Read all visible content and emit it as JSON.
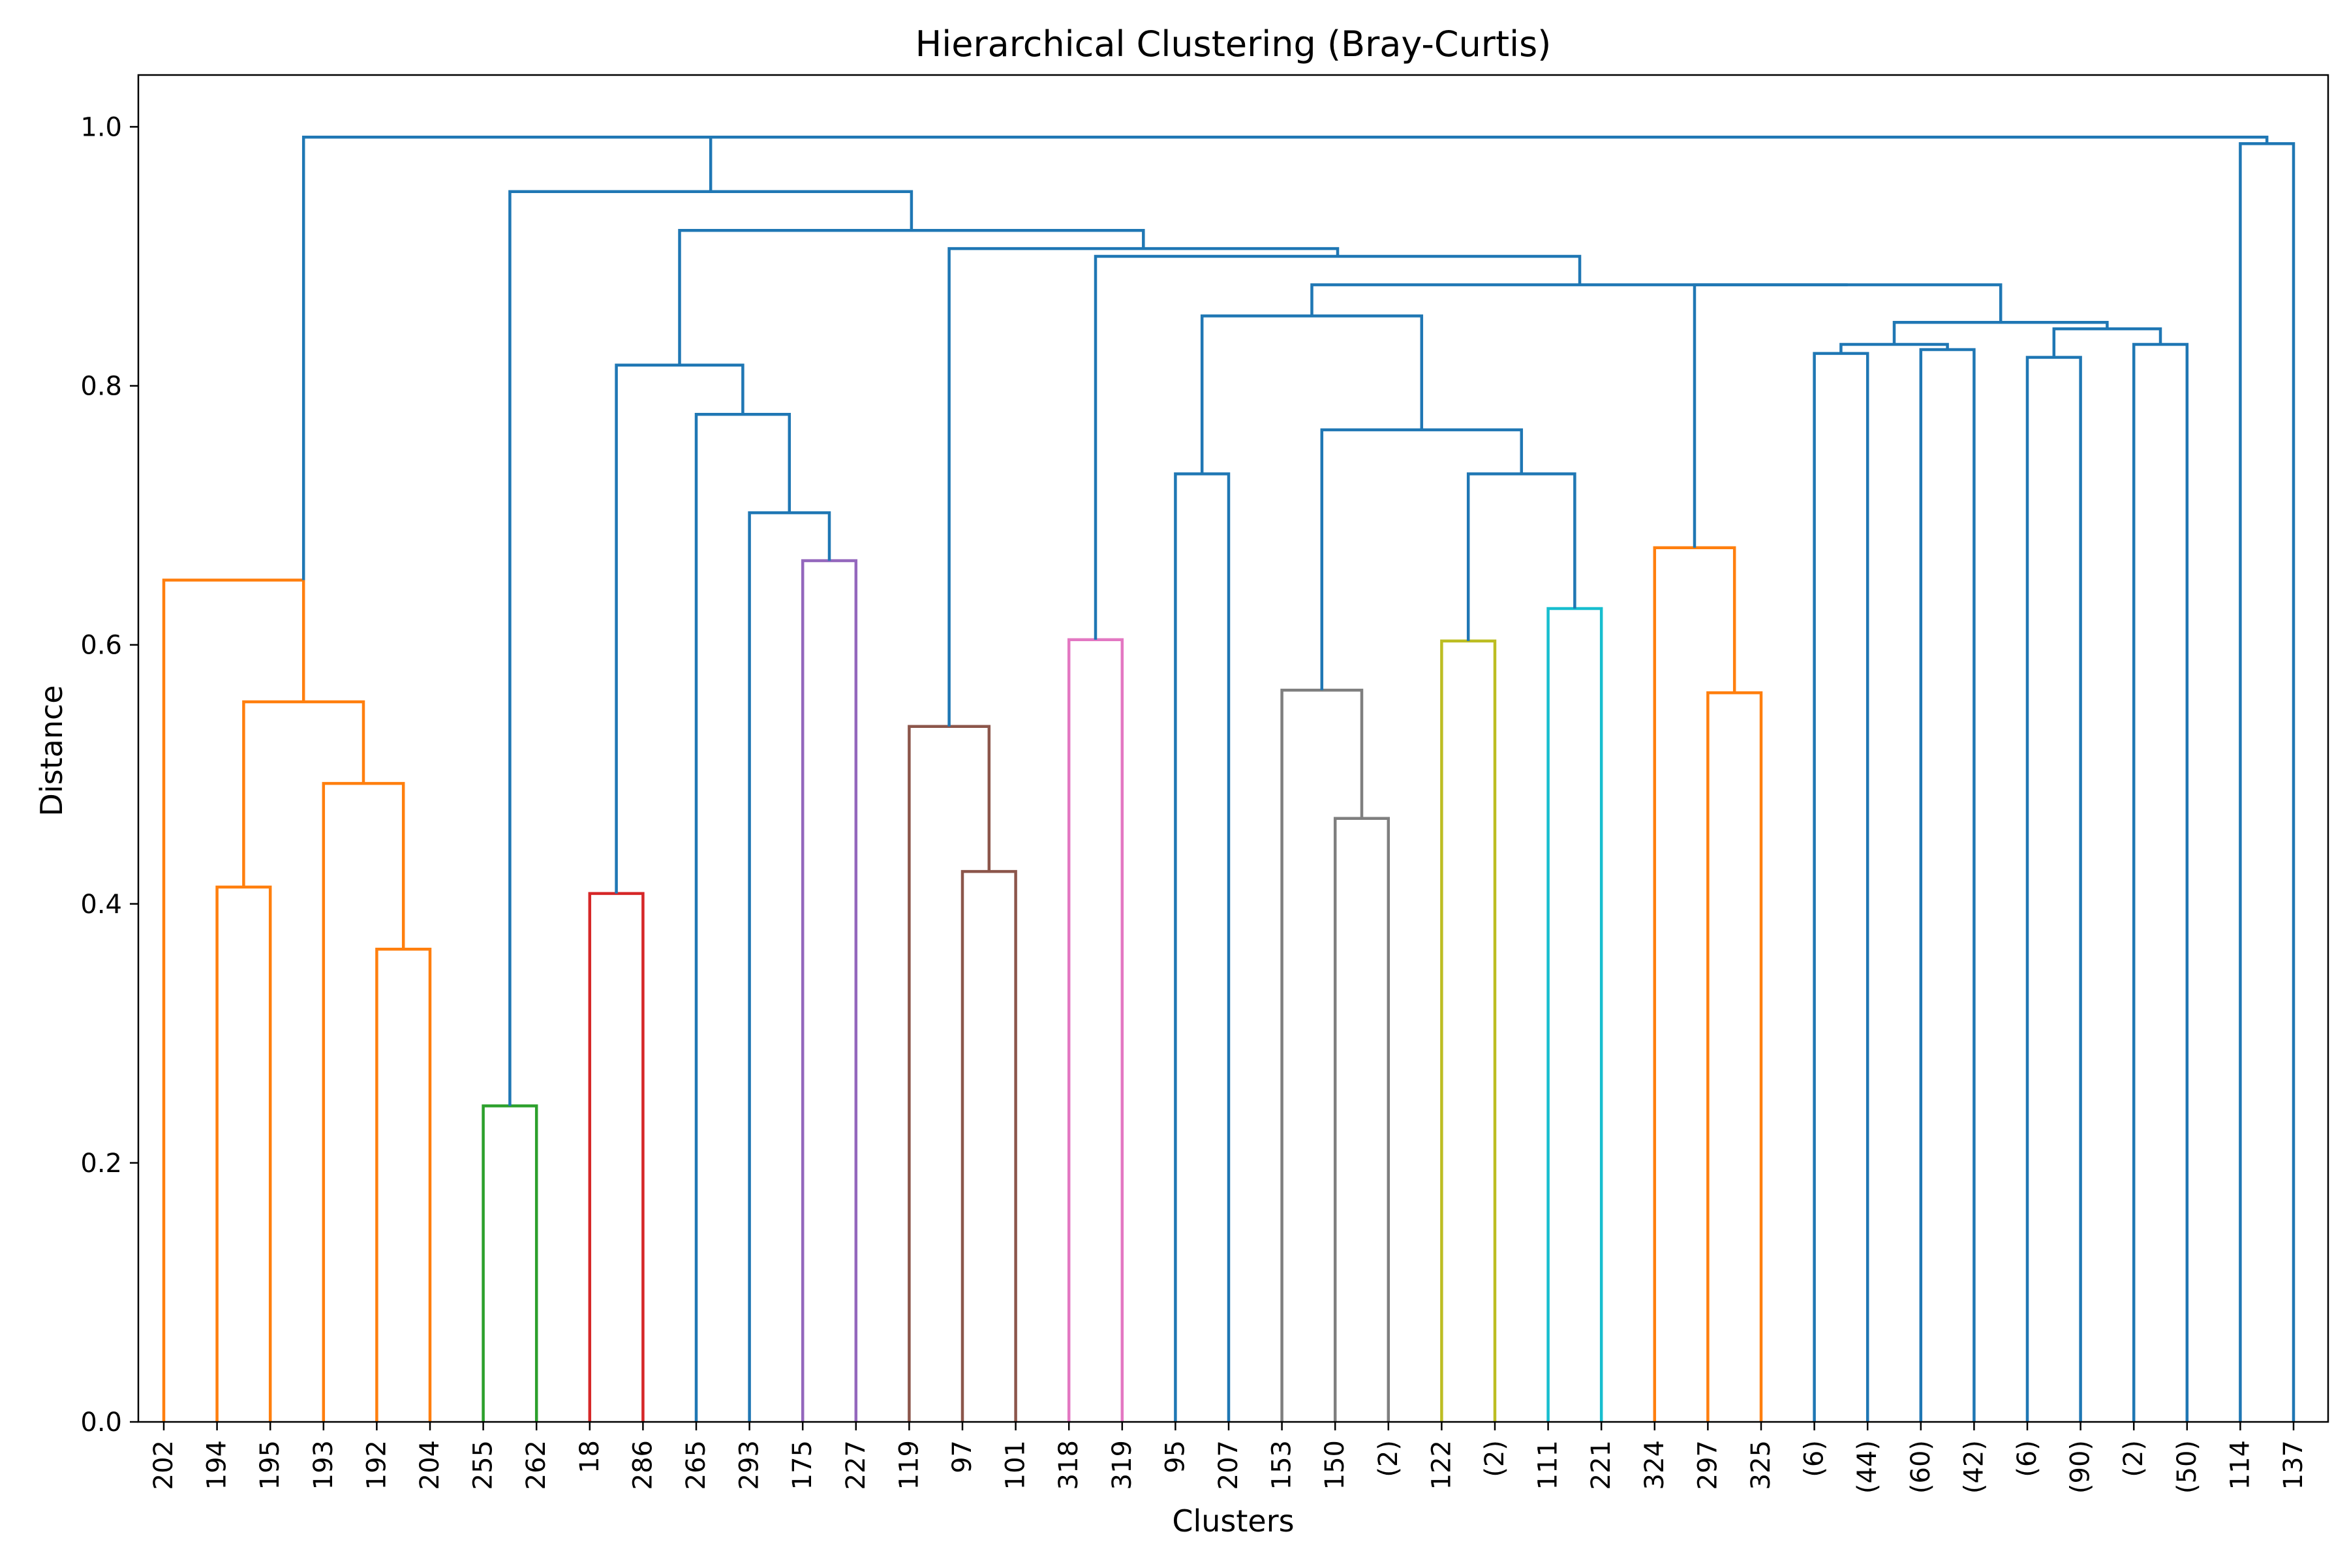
{
  "chart_data": {
    "type": "dendrogram",
    "title": "Hierarchical Clustering (Bray-Curtis)",
    "xlabel": "Clusters",
    "ylabel": "Distance",
    "ylim": [
      0,
      1.04
    ],
    "yticks": [
      "0.0",
      "0.2",
      "0.4",
      "0.6",
      "0.8",
      "1.0"
    ],
    "leaves": [
      "202",
      "194",
      "195",
      "193",
      "192",
      "204",
      "255",
      "262",
      "18",
      "286",
      "265",
      "293",
      "175",
      "227",
      "119",
      "97",
      "101",
      "318",
      "319",
      "95",
      "207",
      "153",
      "150",
      "(2)",
      "122",
      "(2)",
      "111",
      "221",
      "324",
      "297",
      "325",
      "(6)",
      "(44)",
      "(60)",
      "(42)",
      "(6)",
      "(90)",
      "(2)",
      "(50)",
      "114",
      "137"
    ],
    "colors": {
      "C0": "#1f77b4",
      "C1": "#ff7f0e",
      "C2": "#2ca02c",
      "C3": "#d62728",
      "C4": "#9467bd",
      "C5": "#8c564b",
      "C6": "#e377c2",
      "C7": "#7f7f7f",
      "C8": "#bcbd22",
      "C9": "#17becf"
    },
    "links": [
      {
        "a": 1,
        "b": 2,
        "h": 0.413,
        "ha": 0,
        "hb": 0,
        "c": "C1"
      },
      {
        "a": 4,
        "b": 5,
        "h": 0.365,
        "ha": 0,
        "hb": 0,
        "c": "C1"
      },
      {
        "a": 3,
        "b": 4.5,
        "h": 0.493,
        "ha": 0,
        "hb": 0.365,
        "c": "C1"
      },
      {
        "a": 1.5,
        "b": 3.75,
        "h": 0.556,
        "ha": 0.413,
        "hb": 0.493,
        "c": "C1"
      },
      {
        "a": 0,
        "b": 2.625,
        "h": 0.65,
        "ha": 0,
        "hb": 0.556,
        "c": "C1"
      },
      {
        "a": 6,
        "b": 7,
        "h": 0.244,
        "ha": 0,
        "hb": 0,
        "c": "C2"
      },
      {
        "a": 8,
        "b": 9,
        "h": 0.408,
        "ha": 0,
        "hb": 0,
        "c": "C3"
      },
      {
        "a": 12,
        "b": 13,
        "h": 0.665,
        "ha": 0,
        "hb": 0,
        "c": "C4"
      },
      {
        "a": 11,
        "b": 12.5,
        "h": 0.702,
        "ha": 0,
        "hb": 0.665,
        "c": "C0"
      },
      {
        "a": 10,
        "b": 11.75,
        "h": 0.778,
        "ha": 0,
        "hb": 0.702,
        "c": "C0"
      },
      {
        "a": 8.5,
        "b": 10.875,
        "h": 0.816,
        "ha": 0.408,
        "hb": 0.778,
        "c": "C0"
      },
      {
        "a": 15,
        "b": 16,
        "h": 0.425,
        "ha": 0,
        "hb": 0,
        "c": "C5"
      },
      {
        "a": 14,
        "b": 15.5,
        "h": 0.537,
        "ha": 0,
        "hb": 0.425,
        "c": "C5"
      },
      {
        "a": 17,
        "b": 18,
        "h": 0.604,
        "ha": 0,
        "hb": 0,
        "c": "C6"
      },
      {
        "a": 19,
        "b": 20,
        "h": 0.732,
        "ha": 0,
        "hb": 0,
        "c": "C0"
      },
      {
        "a": 22,
        "b": 23,
        "h": 0.466,
        "ha": 0,
        "hb": 0,
        "c": "C7"
      },
      {
        "a": 21,
        "b": 22.5,
        "h": 0.565,
        "ha": 0,
        "hb": 0.466,
        "c": "C7"
      },
      {
        "a": 24,
        "b": 25,
        "h": 0.603,
        "ha": 0,
        "hb": 0,
        "c": "C8"
      },
      {
        "a": 26,
        "b": 27,
        "h": 0.628,
        "ha": 0,
        "hb": 0,
        "c": "C9"
      },
      {
        "a": 24.5,
        "b": 26.5,
        "h": 0.732,
        "ha": 0.603,
        "hb": 0.628,
        "c": "C0"
      },
      {
        "a": 21.75,
        "b": 25.5,
        "h": 0.766,
        "ha": 0.565,
        "hb": 0.732,
        "c": "C0"
      },
      {
        "a": 19.5,
        "b": 23.625,
        "h": 0.854,
        "ha": 0.732,
        "hb": 0.766,
        "c": "C0"
      },
      {
        "a": 29,
        "b": 30,
        "h": 0.563,
        "ha": 0,
        "hb": 0,
        "c": "C1"
      },
      {
        "a": 28,
        "b": 29.5,
        "h": 0.675,
        "ha": 0,
        "hb": 0.563,
        "c": "C1"
      },
      {
        "a": 31,
        "b": 32,
        "h": 0.825,
        "ha": 0,
        "hb": 0,
        "c": "C0"
      },
      {
        "a": 33,
        "b": 34,
        "h": 0.828,
        "ha": 0,
        "hb": 0,
        "c": "C0"
      },
      {
        "a": 31.5,
        "b": 33.5,
        "h": 0.832,
        "ha": 0.825,
        "hb": 0.828,
        "c": "C0"
      },
      {
        "a": 35,
        "b": 36,
        "h": 0.822,
        "ha": 0,
        "hb": 0,
        "c": "C0"
      },
      {
        "a": 37,
        "b": 38,
        "h": 0.832,
        "ha": 0,
        "hb": 0,
        "c": "C0"
      },
      {
        "a": 35.5,
        "b": 37.5,
        "h": 0.844,
        "ha": 0.822,
        "hb": 0.832,
        "c": "C0"
      },
      {
        "a": 32.5,
        "b": 36.5,
        "h": 0.849,
        "ha": 0.832,
        "hb": 0.844,
        "c": "C0"
      },
      {
        "a": 28.75,
        "b": 34.5,
        "h": 0.878,
        "ha": 0.675,
        "hb": 0.849,
        "c": "C0"
      },
      {
        "a": 21.5625,
        "b": 31.625,
        "h": 0.878,
        "ha": 0.854,
        "hb": 0.878,
        "c": "C0"
      },
      {
        "a": 17.5,
        "b": 26.59375,
        "h": 0.9,
        "ha": 0.604,
        "hb": 0.878,
        "c": "C0"
      },
      {
        "a": 14.75,
        "b": 22.046875,
        "h": 0.906,
        "ha": 0.537,
        "hb": 0.9,
        "c": "C0"
      },
      {
        "a": 9.6875,
        "b": 18.3984375,
        "h": 0.92,
        "ha": 0.816,
        "hb": 0.906,
        "c": "C0"
      },
      {
        "a": 6.5,
        "b": 14.04296875,
        "h": 0.95,
        "ha": 0.244,
        "hb": 0.92,
        "c": "C0"
      },
      {
        "a": 39,
        "b": 40,
        "h": 0.987,
        "ha": 0,
        "hb": 0,
        "c": "C0"
      },
      {
        "a": 10.271484375,
        "b": 39.5,
        "h": 0.992,
        "ha": 0.95,
        "hb": 0.987,
        "c": "C0"
      },
      {
        "a": 2.625,
        "b": 24.8857421875,
        "h": 0.992,
        "ha": 0.65,
        "hb": 0.992,
        "c": "C0"
      }
    ]
  }
}
